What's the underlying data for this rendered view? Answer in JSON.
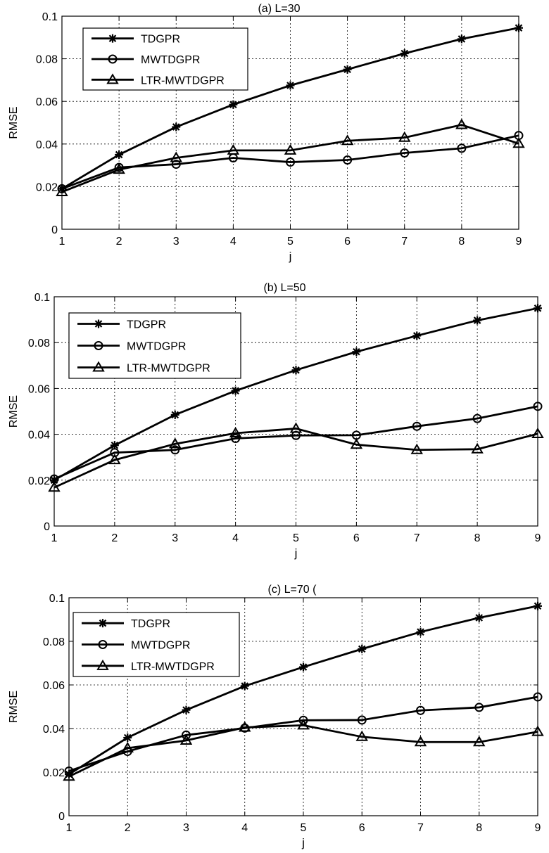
{
  "chart_data": [
    {
      "type": "line",
      "title": "(a) L=30",
      "xlabel": "j",
      "ylabel": "RMSE",
      "x": [
        1,
        2,
        3,
        4,
        5,
        6,
        7,
        8,
        9
      ],
      "xlim": [
        1,
        9
      ],
      "ylim": [
        0,
        0.1
      ],
      "xticks": [
        "1",
        "2",
        "3",
        "4",
        "5",
        "6",
        "7",
        "8",
        "9"
      ],
      "yticks": [
        "0",
        "0.02",
        "0.04",
        "0.06",
        "0.08",
        "0.1"
      ],
      "grid": true,
      "legend_position": "top-left",
      "series": [
        {
          "name": "TDGPR",
          "marker": "star",
          "values": [
            0.019,
            0.035,
            0.048,
            0.0585,
            0.0675,
            0.075,
            0.0825,
            0.0893,
            0.0945
          ]
        },
        {
          "name": "MWTDGPR",
          "marker": "circle",
          "values": [
            0.019,
            0.029,
            0.0305,
            0.0335,
            0.0315,
            0.0325,
            0.0358,
            0.038,
            0.044
          ]
        },
        {
          "name": "LTR-MWTDGPR",
          "marker": "triangle",
          "values": [
            0.0175,
            0.028,
            0.0335,
            0.037,
            0.037,
            0.0415,
            0.043,
            0.049,
            0.0402
          ]
        }
      ]
    },
    {
      "type": "line",
      "title": "(b) L=50",
      "xlabel": "j",
      "ylabel": "RMSE",
      "x": [
        1,
        2,
        3,
        4,
        5,
        6,
        7,
        8,
        9
      ],
      "xlim": [
        1,
        9
      ],
      "ylim": [
        0,
        0.1
      ],
      "xticks": [
        "1",
        "2",
        "3",
        "4",
        "5",
        "6",
        "7",
        "8",
        "9"
      ],
      "yticks": [
        "0",
        "0.02",
        "0.04",
        "0.06",
        "0.08",
        "0.1"
      ],
      "grid": true,
      "legend_position": "top-left",
      "series": [
        {
          "name": "TDGPR",
          "marker": "star",
          "values": [
            0.02,
            0.0352,
            0.0485,
            0.059,
            0.068,
            0.076,
            0.083,
            0.0897,
            0.095
          ]
        },
        {
          "name": "MWTDGPR",
          "marker": "circle",
          "values": [
            0.0205,
            0.032,
            0.0332,
            0.0382,
            0.0395,
            0.0396,
            0.0435,
            0.0469,
            0.0522
          ]
        },
        {
          "name": "LTR-MWTDGPR",
          "marker": "triangle",
          "values": [
            0.0168,
            0.0288,
            0.0358,
            0.0405,
            0.0425,
            0.0355,
            0.0332,
            0.0335,
            0.0402
          ]
        }
      ]
    },
    {
      "type": "line",
      "title": "(c) L=70 (",
      "xlabel": "j",
      "ylabel": "RMSE",
      "x": [
        1,
        2,
        3,
        4,
        5,
        6,
        7,
        8,
        9
      ],
      "xlim": [
        1,
        9
      ],
      "ylim": [
        0,
        0.1
      ],
      "xticks": [
        "1",
        "2",
        "3",
        "4",
        "5",
        "6",
        "7",
        "8",
        "9"
      ],
      "yticks": [
        "0",
        "0.02",
        "0.04",
        "0.06",
        "0.08",
        "0.1"
      ],
      "grid": true,
      "legend_position": "top-left",
      "series": [
        {
          "name": "TDGPR",
          "marker": "star",
          "values": [
            0.019,
            0.0358,
            0.0485,
            0.0595,
            0.0682,
            0.0765,
            0.0843,
            0.0908,
            0.0962
          ]
        },
        {
          "name": "MWTDGPR",
          "marker": "circle",
          "values": [
            0.0205,
            0.0295,
            0.037,
            0.0402,
            0.0438,
            0.0439,
            0.0483,
            0.0497,
            0.0545
          ]
        },
        {
          "name": "LTR-MWTDGPR",
          "marker": "triangle",
          "values": [
            0.018,
            0.031,
            0.0345,
            0.0405,
            0.0415,
            0.0362,
            0.0338,
            0.0338,
            0.0385
          ]
        }
      ]
    }
  ]
}
